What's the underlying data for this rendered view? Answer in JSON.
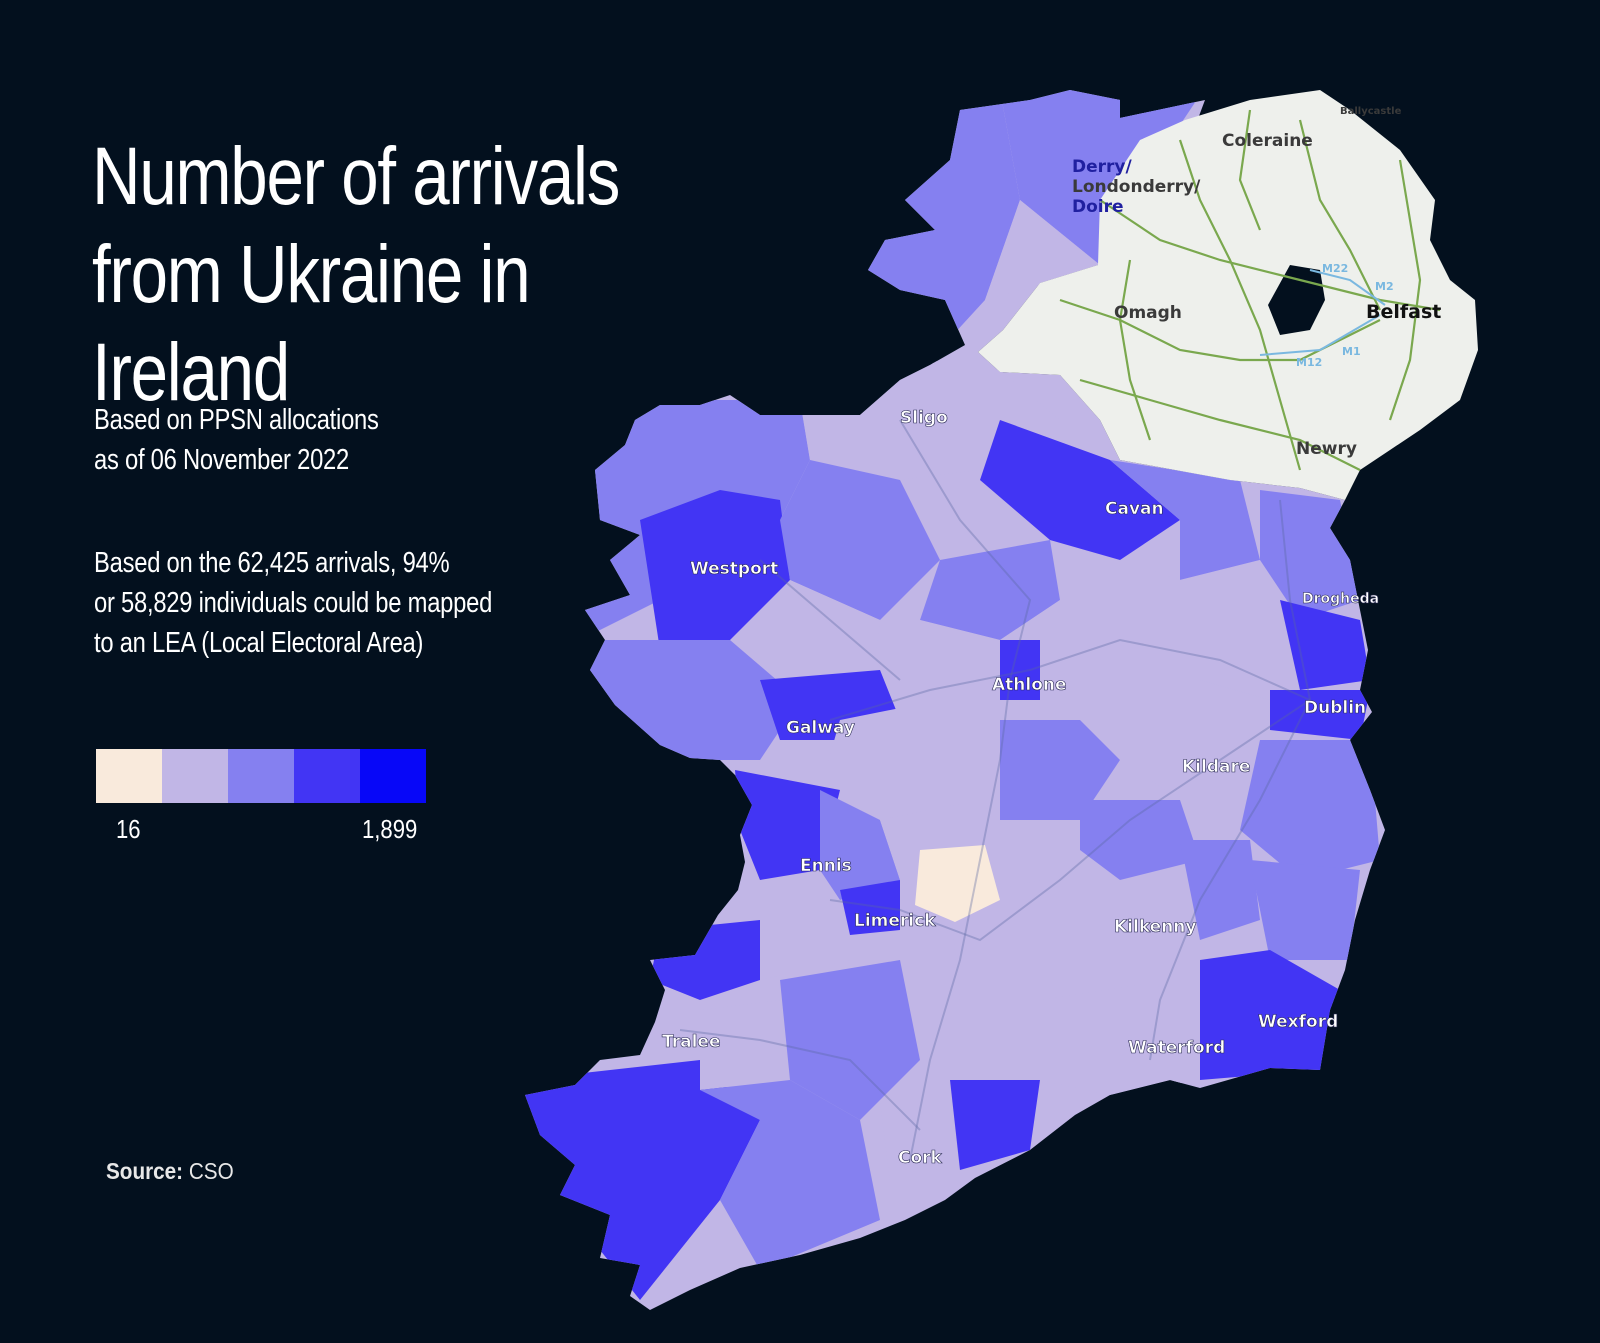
{
  "title": "Number of arrivals from Ukraine in Ireland",
  "subtitle_lines": [
    "Based on PPSN allocations",
    "as of 06 November 2022"
  ],
  "note_lines": [
    "Based on the 62,425 arrivals, 94%",
    "or 58,829 individuals could be mapped",
    "to an LEA (Local Electoral Area)"
  ],
  "legend": {
    "min_label": "16",
    "max_label": "1,899",
    "colors": [
      "#f9eadc",
      "#c1b6e6",
      "#8580f0",
      "#4235f4",
      "#0707f8"
    ]
  },
  "source": {
    "label": "Source:",
    "value": "CSO"
  },
  "colors": {
    "background": "#03101e",
    "northern_ireland_land": "#eef0ec",
    "roads_ni": "#7aa84e",
    "text_light": "#ffffff",
    "text_dark": "#2c2c2c"
  },
  "map": {
    "ireland_cities": [
      "Sligo",
      "Westport",
      "Cavan",
      "Drogheda",
      "Athlone",
      "Dublin",
      "Galway",
      "Kildare",
      "Ennis",
      "Limerick",
      "Kilkenny",
      "Tralee",
      "Wexford",
      "Waterford",
      "Cork"
    ],
    "ni_cities": [
      "Coleraine",
      "Derry/",
      "Londonderry/",
      "Doire",
      "Omagh",
      "Belfast",
      "Newry",
      "Ballycastle"
    ],
    "road_labels": [
      "M22",
      "M2",
      "M1",
      "M12"
    ]
  }
}
